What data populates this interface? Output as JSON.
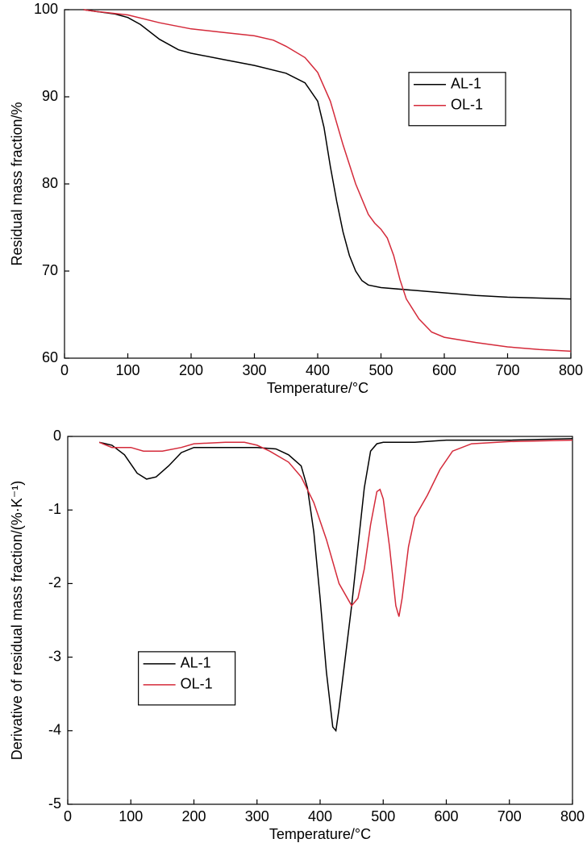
{
  "chart_data": [
    {
      "type": "line",
      "xlabel": "Temperature/°C",
      "ylabel": "Residual mass fraction/%",
      "xlim": [
        0,
        800
      ],
      "xticks": [
        0,
        100,
        200,
        300,
        400,
        500,
        600,
        700,
        800
      ],
      "ylim": [
        60,
        100
      ],
      "yticks": [
        60,
        70,
        80,
        90,
        100
      ],
      "legend": "upper right",
      "series": [
        {
          "name": "AL-1",
          "color": "#000000",
          "x": [
            30,
            50,
            80,
            100,
            120,
            150,
            180,
            200,
            250,
            300,
            350,
            380,
            400,
            410,
            420,
            430,
            440,
            450,
            460,
            470,
            480,
            500,
            550,
            600,
            650,
            700,
            750,
            800
          ],
          "values": [
            100,
            99.8,
            99.5,
            99.1,
            98.3,
            96.6,
            95.4,
            95.0,
            94.3,
            93.6,
            92.7,
            91.6,
            89.5,
            86.5,
            82,
            78,
            74.5,
            71.8,
            70,
            68.9,
            68.4,
            68.1,
            67.8,
            67.5,
            67.2,
            67.0,
            66.9,
            66.8
          ]
        },
        {
          "name": "OL-1",
          "color": "#d42a3a",
          "x": [
            30,
            50,
            100,
            150,
            200,
            250,
            300,
            330,
            350,
            380,
            400,
            420,
            440,
            460,
            480,
            490,
            500,
            510,
            520,
            530,
            540,
            560,
            580,
            600,
            650,
            700,
            750,
            800
          ],
          "values": [
            100,
            99.8,
            99.4,
            98.5,
            97.8,
            97.4,
            97.0,
            96.5,
            95.8,
            94.5,
            92.8,
            89.5,
            84.5,
            80,
            76.5,
            75.5,
            74.8,
            73.8,
            71.8,
            69,
            66.8,
            64.5,
            63,
            62.4,
            61.8,
            61.3,
            61,
            60.8
          ]
        }
      ]
    },
    {
      "type": "line",
      "xlabel": "Temperature/°C",
      "ylabel": "Derivative of residual mass fraction/(%·K⁻¹)",
      "xlim": [
        0,
        800
      ],
      "xticks": [
        0,
        100,
        200,
        300,
        400,
        500,
        600,
        700,
        800
      ],
      "ylim": [
        -5,
        0
      ],
      "yticks": [
        -5,
        -4,
        -3,
        -2,
        -1,
        0
      ],
      "legend": "lower left",
      "series": [
        {
          "name": "AL-1",
          "color": "#000000",
          "x": [
            50,
            70,
            90,
            110,
            125,
            140,
            160,
            180,
            200,
            250,
            300,
            330,
            350,
            370,
            380,
            390,
            400,
            410,
            420,
            425,
            430,
            440,
            450,
            460,
            470,
            480,
            490,
            500,
            550,
            600,
            700,
            800
          ],
          "values": [
            -0.08,
            -0.12,
            -0.25,
            -0.5,
            -0.58,
            -0.55,
            -0.4,
            -0.22,
            -0.15,
            -0.15,
            -0.15,
            -0.17,
            -0.25,
            -0.4,
            -0.7,
            -1.3,
            -2.2,
            -3.2,
            -3.95,
            -4.0,
            -3.7,
            -3.0,
            -2.3,
            -1.5,
            -0.7,
            -0.2,
            -0.1,
            -0.08,
            -0.08,
            -0.05,
            -0.05,
            -0.03
          ]
        },
        {
          "name": "OL-1",
          "color": "#d42a3a",
          "x": [
            50,
            70,
            100,
            120,
            150,
            180,
            200,
            250,
            280,
            300,
            320,
            350,
            370,
            390,
            410,
            430,
            450,
            460,
            470,
            480,
            490,
            495,
            500,
            510,
            520,
            525,
            530,
            540,
            550,
            570,
            590,
            610,
            640,
            700,
            800
          ],
          "values": [
            -0.08,
            -0.15,
            -0.15,
            -0.2,
            -0.2,
            -0.15,
            -0.1,
            -0.08,
            -0.08,
            -0.12,
            -0.2,
            -0.35,
            -0.55,
            -0.9,
            -1.4,
            -2.0,
            -2.3,
            -2.2,
            -1.8,
            -1.2,
            -0.75,
            -0.72,
            -0.85,
            -1.5,
            -2.3,
            -2.45,
            -2.2,
            -1.5,
            -1.1,
            -0.8,
            -0.45,
            -0.2,
            -0.1,
            -0.07,
            -0.05
          ]
        }
      ]
    }
  ]
}
